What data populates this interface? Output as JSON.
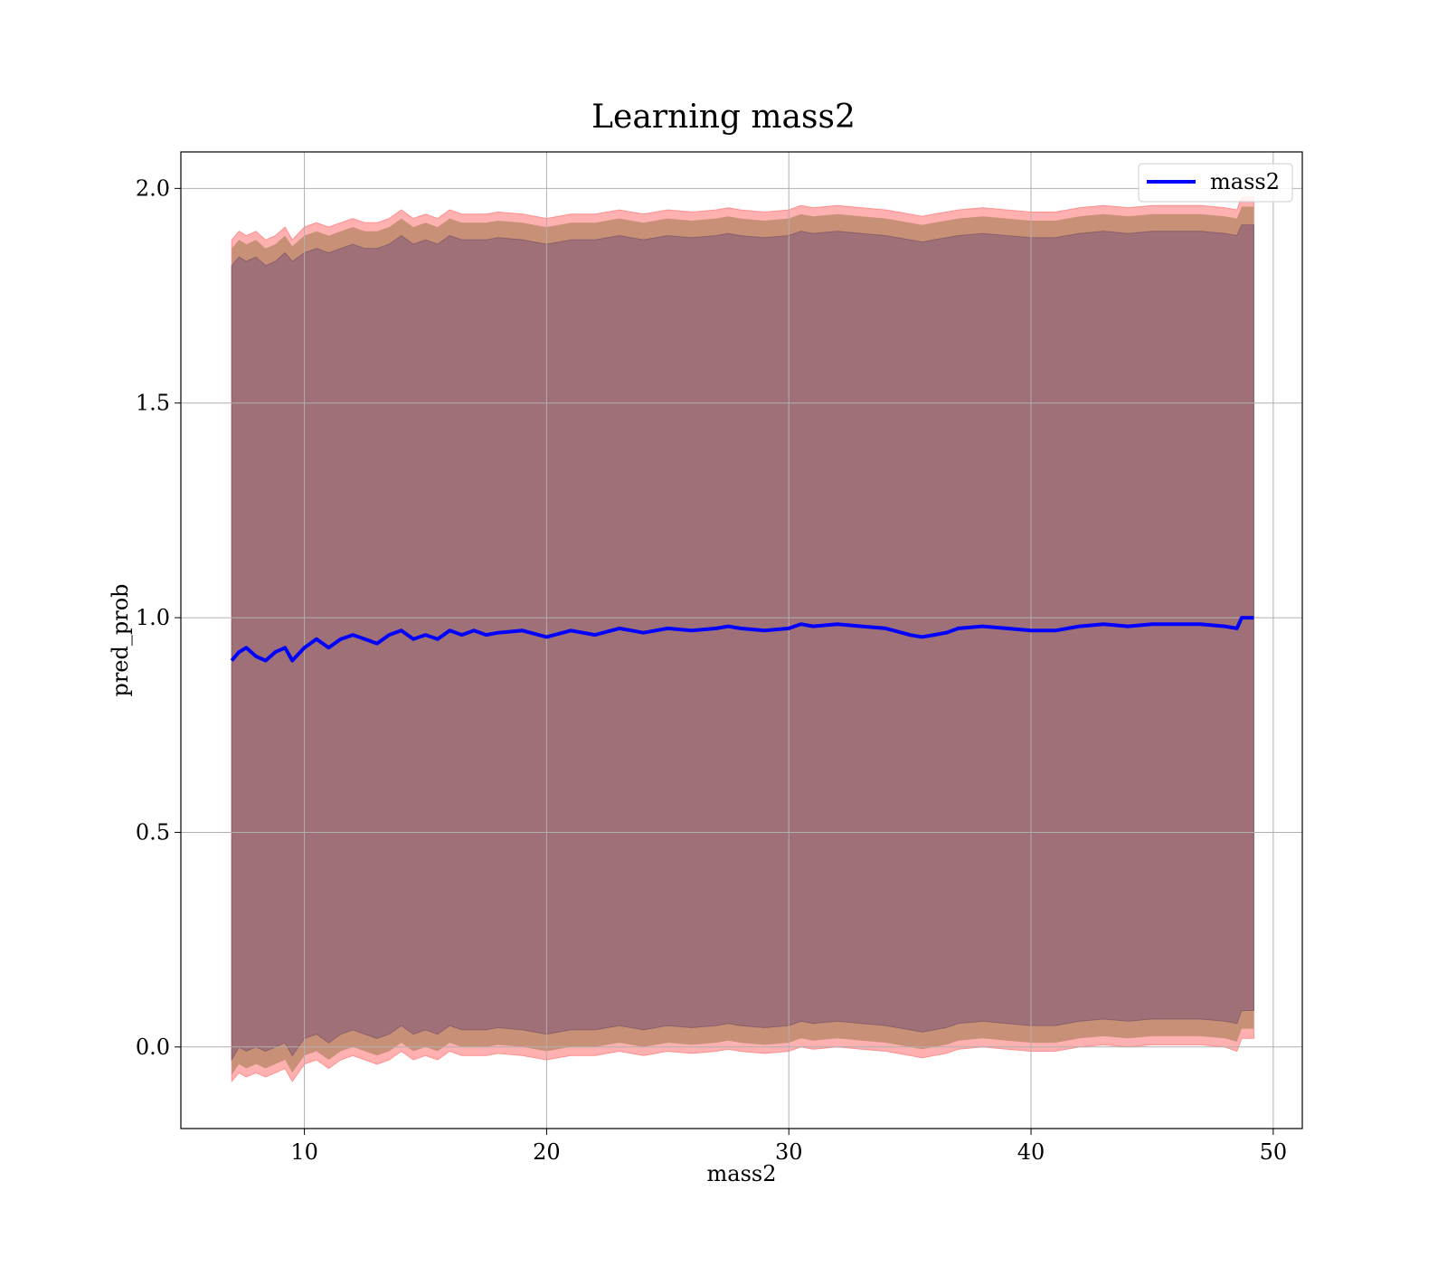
{
  "chart_data": {
    "type": "line",
    "title": "Learning mass2",
    "xlabel": "mass2",
    "ylabel": "pred_prob",
    "xlim": [
      4.9,
      51.2
    ],
    "ylim": [
      -0.19,
      2.085
    ],
    "xticks": [
      10,
      20,
      30,
      40,
      50
    ],
    "xtick_labels": [
      "10",
      "20",
      "30",
      "40",
      "50"
    ],
    "yticks": [
      0.0,
      0.5,
      1.0,
      1.5,
      2.0
    ],
    "ytick_labels": [
      "0.0",
      "0.5",
      "1.0",
      "1.5",
      "2.0"
    ],
    "grid": true,
    "legend_position": "top-right",
    "series": [
      {
        "name": "mass2",
        "color": "#0000ff",
        "x": [
          7.0,
          7.3,
          7.6,
          8.0,
          8.4,
          8.8,
          9.2,
          9.5,
          10.0,
          10.5,
          11.0,
          11.5,
          12.0,
          12.5,
          13.0,
          13.5,
          14.0,
          14.5,
          15.0,
          15.5,
          16.0,
          16.5,
          17.0,
          17.5,
          18.0,
          19.0,
          20.0,
          21.0,
          22.0,
          23.0,
          24.0,
          25.0,
          26.0,
          27.0,
          27.5,
          28.0,
          29.0,
          30.0,
          30.5,
          31.0,
          32.0,
          33.0,
          34.0,
          35.0,
          35.5,
          36.0,
          36.5,
          37.0,
          38.0,
          39.0,
          40.0,
          41.0,
          42.0,
          43.0,
          44.0,
          45.0,
          46.0,
          47.0,
          48.0,
          48.5,
          48.7,
          49.0,
          49.2
        ],
        "mean": [
          0.9,
          0.92,
          0.93,
          0.91,
          0.9,
          0.92,
          0.93,
          0.9,
          0.93,
          0.95,
          0.93,
          0.95,
          0.96,
          0.95,
          0.94,
          0.96,
          0.97,
          0.95,
          0.96,
          0.95,
          0.97,
          0.96,
          0.97,
          0.96,
          0.965,
          0.97,
          0.955,
          0.97,
          0.96,
          0.975,
          0.965,
          0.975,
          0.97,
          0.975,
          0.98,
          0.975,
          0.97,
          0.975,
          0.985,
          0.98,
          0.985,
          0.98,
          0.975,
          0.96,
          0.955,
          0.96,
          0.965,
          0.975,
          0.98,
          0.975,
          0.97,
          0.97,
          0.98,
          0.985,
          0.98,
          0.985,
          0.985,
          0.985,
          0.98,
          0.975,
          1.0,
          1.0,
          1.0
        ],
        "band_inner_upper": [
          1.82,
          1.84,
          1.83,
          1.84,
          1.82,
          1.83,
          1.85,
          1.83,
          1.85,
          1.86,
          1.85,
          1.86,
          1.87,
          1.86,
          1.86,
          1.87,
          1.89,
          1.87,
          1.88,
          1.87,
          1.89,
          1.88,
          1.88,
          1.88,
          1.885,
          1.88,
          1.87,
          1.88,
          1.88,
          1.89,
          1.88,
          1.89,
          1.885,
          1.89,
          1.895,
          1.89,
          1.885,
          1.89,
          1.9,
          1.895,
          1.9,
          1.895,
          1.89,
          1.88,
          1.875,
          1.88,
          1.885,
          1.89,
          1.895,
          1.89,
          1.885,
          1.885,
          1.895,
          1.9,
          1.895,
          1.9,
          1.9,
          1.9,
          1.895,
          1.89,
          1.915,
          1.915,
          1.915
        ],
        "band_inner_lower": [
          -0.03,
          0.0,
          -0.01,
          0.0,
          -0.01,
          0.0,
          0.01,
          -0.02,
          0.02,
          0.03,
          0.01,
          0.03,
          0.04,
          0.03,
          0.02,
          0.03,
          0.05,
          0.03,
          0.04,
          0.03,
          0.05,
          0.04,
          0.04,
          0.04,
          0.045,
          0.04,
          0.03,
          0.04,
          0.04,
          0.05,
          0.04,
          0.05,
          0.045,
          0.05,
          0.055,
          0.05,
          0.045,
          0.05,
          0.06,
          0.055,
          0.06,
          0.055,
          0.05,
          0.04,
          0.035,
          0.04,
          0.045,
          0.055,
          0.06,
          0.055,
          0.05,
          0.05,
          0.06,
          0.065,
          0.06,
          0.065,
          0.065,
          0.065,
          0.06,
          0.055,
          0.085,
          0.085,
          0.085
        ],
        "band_outer_upper": [
          1.88,
          1.9,
          1.89,
          1.9,
          1.88,
          1.89,
          1.91,
          1.88,
          1.91,
          1.92,
          1.91,
          1.92,
          1.93,
          1.92,
          1.92,
          1.93,
          1.95,
          1.93,
          1.94,
          1.93,
          1.95,
          1.94,
          1.94,
          1.94,
          1.945,
          1.94,
          1.93,
          1.94,
          1.94,
          1.95,
          1.94,
          1.95,
          1.945,
          1.95,
          1.955,
          1.95,
          1.945,
          1.95,
          1.96,
          1.955,
          1.96,
          1.955,
          1.95,
          1.94,
          1.935,
          1.94,
          1.945,
          1.95,
          1.955,
          1.95,
          1.945,
          1.945,
          1.955,
          1.96,
          1.955,
          1.96,
          1.96,
          1.96,
          1.955,
          1.95,
          1.98,
          1.98,
          1.98
        ],
        "band_outer_lower": [
          -0.08,
          -0.06,
          -0.07,
          -0.06,
          -0.07,
          -0.06,
          -0.05,
          -0.08,
          -0.04,
          -0.03,
          -0.05,
          -0.03,
          -0.02,
          -0.03,
          -0.04,
          -0.03,
          -0.01,
          -0.03,
          -0.02,
          -0.03,
          -0.01,
          -0.02,
          -0.02,
          -0.02,
          -0.015,
          -0.02,
          -0.03,
          -0.02,
          -0.02,
          -0.01,
          -0.02,
          -0.01,
          -0.015,
          -0.01,
          -0.005,
          -0.01,
          -0.015,
          -0.01,
          0.0,
          -0.005,
          0.0,
          -0.005,
          -0.01,
          -0.02,
          -0.025,
          -0.02,
          -0.015,
          -0.005,
          0.0,
          -0.005,
          -0.01,
          -0.01,
          0.0,
          0.005,
          0.0,
          0.005,
          0.005,
          0.005,
          0.0,
          -0.01,
          0.02,
          0.02,
          0.02
        ]
      }
    ],
    "band_colors": {
      "outer": "#ffb0b0",
      "middle": "#c99078",
      "inner": "#a07078"
    },
    "grid_color": "#b0b0b0"
  }
}
